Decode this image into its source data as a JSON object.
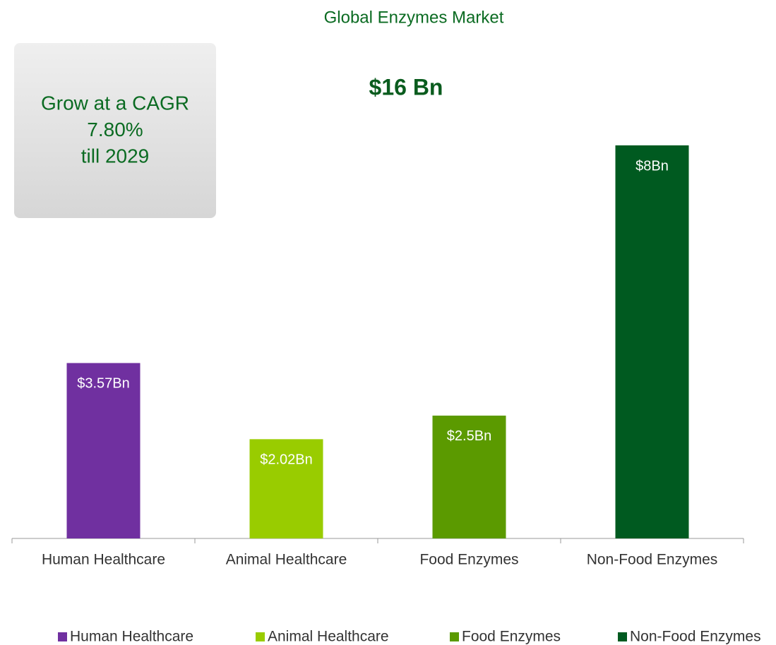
{
  "chart_data": {
    "type": "bar",
    "title": "Global Enzymes Market",
    "subtitle": "$16 Bn",
    "callout": [
      "Grow at a CAGR",
      "7.80%",
      "till 2029"
    ],
    "categories": [
      "Human Healthcare",
      "Animal Healthcare",
      "Food Enzymes",
      "Non-Food Enzymes"
    ],
    "values": [
      3.57,
      2.02,
      2.5,
      8
    ],
    "value_labels": [
      "$3.57Bn",
      "$2.02Bn",
      "$2.5Bn",
      "$8Bn"
    ],
    "colors": [
      "#7030a0",
      "#99cc00",
      "#5b9a00",
      "#005a20"
    ],
    "legend": "bottom"
  }
}
